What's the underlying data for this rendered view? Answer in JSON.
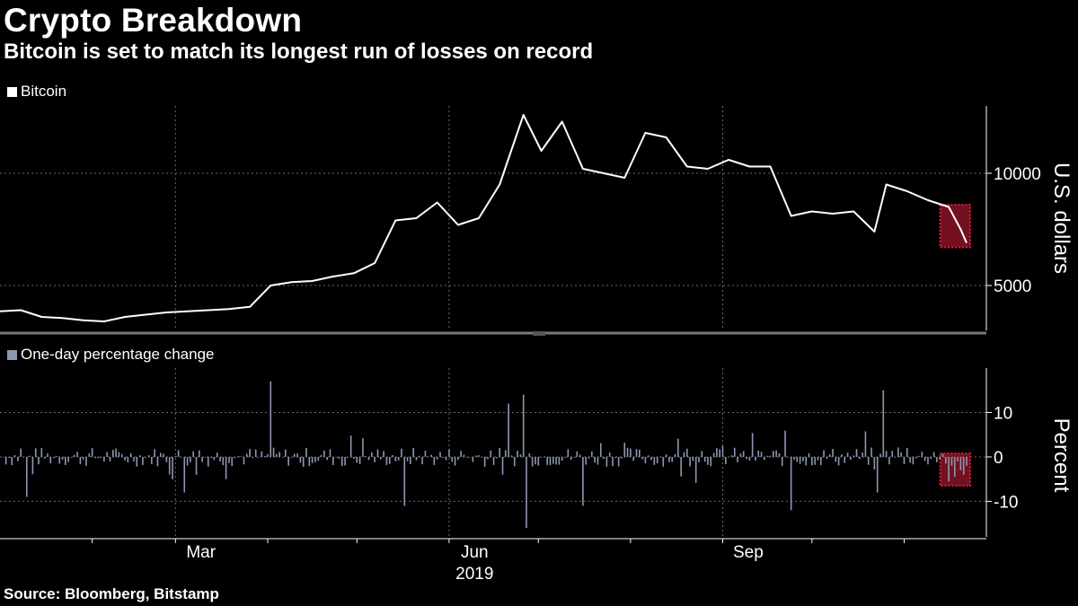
{
  "header": {
    "title": "Crypto Breakdown",
    "subtitle": "Bitcoin is set to match its longest run of losses on record"
  },
  "footer": {
    "source": "Source: Bloomberg, Bitstamp"
  },
  "colors": {
    "background": "#000000",
    "price_line": "#ffffff",
    "bars": "#8d97b4",
    "highlight": "#d21f3c",
    "grid": "#6a6a6a"
  },
  "chart_data": [
    {
      "type": "line",
      "legend": "Bitcoin",
      "ylabel": "U.S. dollars",
      "ylim": [
        3000,
        13000
      ],
      "yticks": [
        5000,
        10000
      ],
      "xlabels": [
        "Mar",
        "Jun",
        "Sep"
      ],
      "year_label": "2019",
      "x": [
        "2019-01-01",
        "2019-01-08",
        "2019-01-15",
        "2019-01-22",
        "2019-01-29",
        "2019-02-05",
        "2019-02-12",
        "2019-02-19",
        "2019-02-26",
        "2019-03-05",
        "2019-03-12",
        "2019-03-19",
        "2019-03-26",
        "2019-04-02",
        "2019-04-09",
        "2019-04-16",
        "2019-04-23",
        "2019-04-30",
        "2019-05-07",
        "2019-05-14",
        "2019-05-21",
        "2019-05-28",
        "2019-06-04",
        "2019-06-11",
        "2019-06-18",
        "2019-06-26",
        "2019-07-02",
        "2019-07-09",
        "2019-07-16",
        "2019-07-23",
        "2019-07-30",
        "2019-08-06",
        "2019-08-13",
        "2019-08-20",
        "2019-08-27",
        "2019-09-03",
        "2019-09-10",
        "2019-09-17",
        "2019-09-24",
        "2019-10-01",
        "2019-10-08",
        "2019-10-15",
        "2019-10-22",
        "2019-10-26",
        "2019-11-02",
        "2019-11-09",
        "2019-11-16",
        "2019-11-20",
        "2019-11-22"
      ],
      "series": [
        {
          "name": "Bitcoin",
          "values": [
            3850,
            3900,
            3600,
            3550,
            3450,
            3400,
            3600,
            3700,
            3800,
            3850,
            3900,
            3950,
            4050,
            5000,
            5150,
            5200,
            5400,
            5550,
            6000,
            7900,
            8000,
            8700,
            7700,
            8000,
            9500,
            12600,
            11000,
            12300,
            10200,
            10000,
            9800,
            11800,
            11600,
            10300,
            10200,
            10600,
            10300,
            10300,
            8100,
            8300,
            8200,
            8300,
            7400,
            9500,
            9200,
            8800,
            8500,
            7500,
            6900
          ]
        }
      ],
      "highlight_range": [
        "2019-11-14",
        "2019-11-22"
      ]
    },
    {
      "type": "bar",
      "legend": "One-day percentage change",
      "ylabel": "Percent",
      "ylim": [
        -18,
        20
      ],
      "yticks": [
        10,
        0,
        -10
      ],
      "notable_values": [
        {
          "date": "2019-04-02",
          "value": 17
        },
        {
          "date": "2019-06-26",
          "value": 14
        },
        {
          "date": "2019-06-27",
          "value": -16
        },
        {
          "date": "2019-06-21",
          "value": 12
        },
        {
          "date": "2019-09-24",
          "value": -12
        },
        {
          "date": "2019-10-25",
          "value": 15
        },
        {
          "date": "2019-01-10",
          "value": -9
        },
        {
          "date": "2019-05-17",
          "value": -11
        },
        {
          "date": "2019-07-16",
          "value": -11
        },
        {
          "date": "2019-03-04",
          "value": -8
        },
        {
          "date": "2019-10-23",
          "value": -8
        }
      ],
      "highlight_range": [
        "2019-11-14",
        "2019-11-22"
      ]
    }
  ]
}
